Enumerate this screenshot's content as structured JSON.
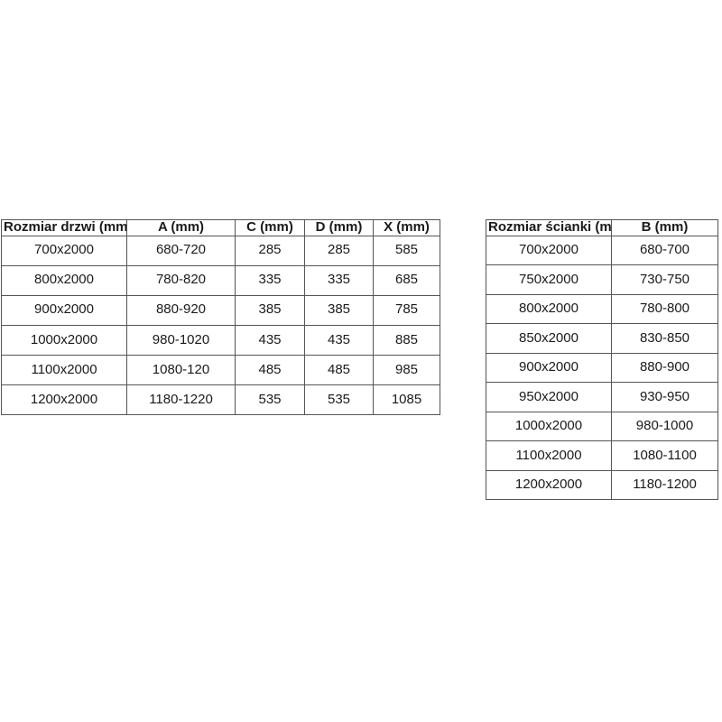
{
  "page": {
    "background_color": "#ffffff",
    "text_color": "#1a1a1a",
    "border_color": "#555555"
  },
  "doors_table": {
    "headers": [
      "Rozmiar drzwi (mm)",
      "A (mm)",
      "C (mm)",
      "D (mm)",
      "X (mm)"
    ],
    "rows": [
      [
        "700x2000",
        "680-720",
        "285",
        "285",
        "585"
      ],
      [
        "800x2000",
        "780-820",
        "335",
        "335",
        "685"
      ],
      [
        "900x2000",
        "880-920",
        "385",
        "385",
        "785"
      ],
      [
        "1000x2000",
        "980-1020",
        "435",
        "435",
        "885"
      ],
      [
        "1100x2000",
        "1080-120",
        "485",
        "485",
        "985"
      ],
      [
        "1200x2000",
        "1180-1220",
        "535",
        "535",
        "1085"
      ]
    ]
  },
  "wall_table": {
    "headers": [
      "Rozmiar ścianki (mm)",
      "B (mm)"
    ],
    "rows": [
      [
        "700x2000",
        "680-700"
      ],
      [
        "750x2000",
        "730-750"
      ],
      [
        "800x2000",
        "780-800"
      ],
      [
        "850x2000",
        "830-850"
      ],
      [
        "900x2000",
        "880-900"
      ],
      [
        "950x2000",
        "930-950"
      ],
      [
        "1000x2000",
        "980-1000"
      ],
      [
        "1100x2000",
        "1080-1100"
      ],
      [
        "1200x2000",
        "1180-1200"
      ]
    ]
  }
}
